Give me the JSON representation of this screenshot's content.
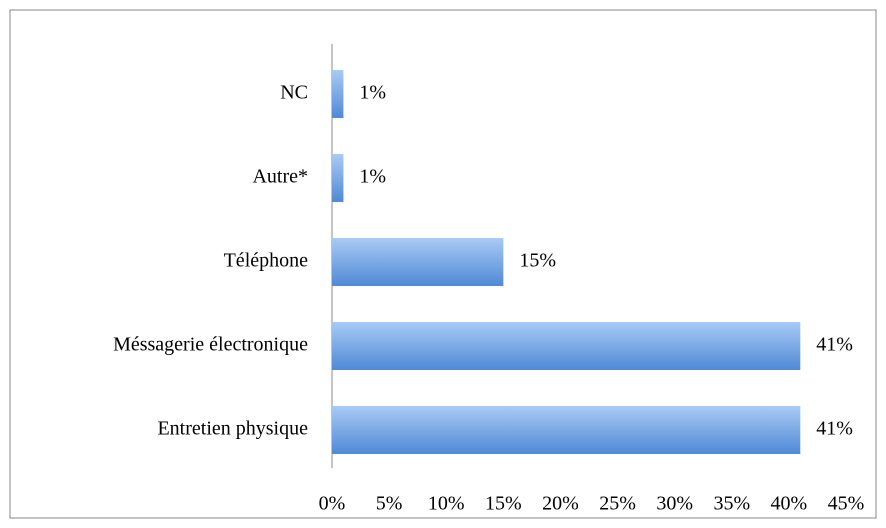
{
  "chart_data": {
    "type": "bar",
    "orientation": "horizontal",
    "categories": [
      "NC",
      "Autre*",
      "Téléphone",
      "Méssagerie électronique",
      "Entretien physique"
    ],
    "values": [
      1,
      1,
      15,
      41,
      41
    ],
    "value_labels": [
      "1%",
      "1%",
      "15%",
      "41%",
      "41%"
    ],
    "color": "#6a9fe0",
    "xlim": [
      0,
      45
    ],
    "xticks": [
      {
        "value": 0,
        "label": "0%"
      },
      {
        "value": 5,
        "label": "5%"
      },
      {
        "value": 10,
        "label": "10%"
      },
      {
        "value": 15,
        "label": "15%"
      },
      {
        "value": 20,
        "label": "20%"
      },
      {
        "value": 25,
        "label": "25%"
      },
      {
        "value": 30,
        "label": "30%"
      },
      {
        "value": 35,
        "label": "35%"
      },
      {
        "value": 40,
        "label": "40%"
      },
      {
        "value": 45,
        "label": "45%"
      }
    ],
    "grid": false
  }
}
